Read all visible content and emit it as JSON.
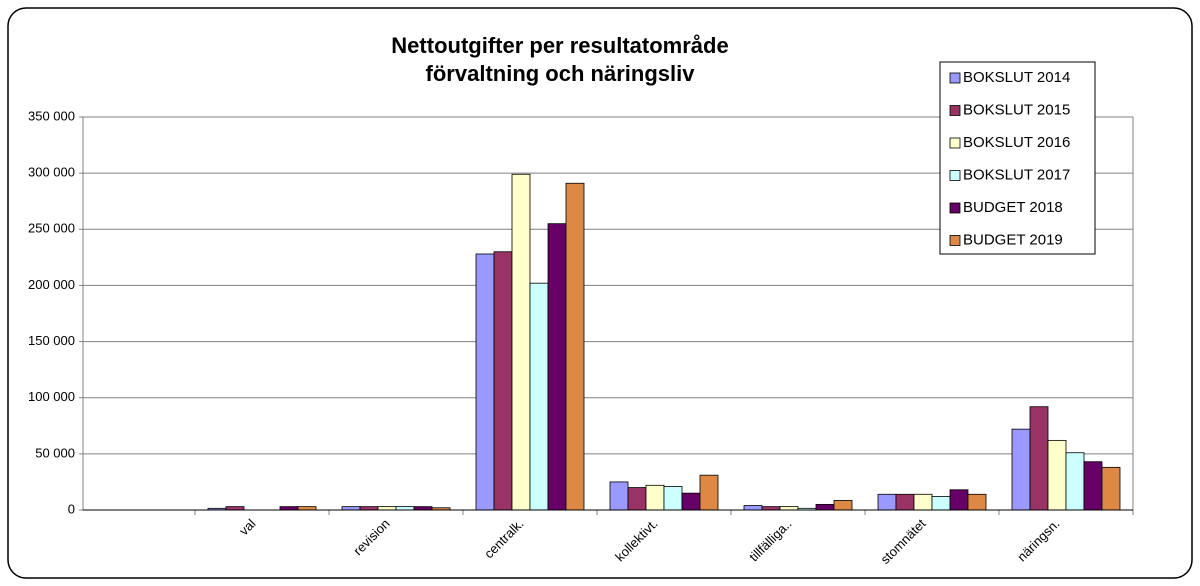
{
  "chart_data": {
    "type": "bar",
    "title": [
      "Nettoutgifter per resultatområde",
      "förvaltning och näringsliv"
    ],
    "categories": [
      "val",
      "revision",
      "centralk.",
      "kollektivt.",
      "tillfälliga..",
      "stomnätet",
      "näringsn."
    ],
    "series": [
      {
        "name": "BOKSLUT 2014",
        "color": "#9999ff",
        "values": [
          1500,
          3000,
          228000,
          25000,
          4000,
          14000,
          72000
        ]
      },
      {
        "name": "BOKSLUT 2015",
        "color": "#993366",
        "values": [
          3000,
          3000,
          230000,
          20000,
          3000,
          14000,
          92000
        ]
      },
      {
        "name": "BOKSLUT 2016",
        "color": "#ffffcc",
        "values": [
          0,
          3000,
          299000,
          22000,
          3000,
          14000,
          62000
        ]
      },
      {
        "name": "BOKSLUT 2017",
        "color": "#ccffff",
        "values": [
          0,
          3000,
          202000,
          21000,
          1500,
          12000,
          51000
        ]
      },
      {
        "name": "BUDGET 2018",
        "color": "#660066",
        "values": [
          3000,
          3000,
          255000,
          15000,
          5000,
          18000,
          43000
        ]
      },
      {
        "name": "BUDGET 2019",
        "color": "#dd8844",
        "values": [
          3000,
          2000,
          291000,
          31000,
          8500,
          14000,
          38000
        ]
      }
    ],
    "ylim": [
      0,
      350000
    ],
    "yticks": [
      0,
      {
        "value": 50000,
        "label": "50 000"
      },
      {
        "value": 100000,
        "label": "100 000"
      },
      {
        "value": 150000,
        "label": "150 000"
      },
      {
        "value": 200000,
        "label": "200 000"
      },
      {
        "value": 250000,
        "label": "250 000"
      },
      {
        "value": 300000,
        "label": "300 000"
      },
      {
        "value": 350000,
        "label": "350 000"
      }
    ],
    "grid": true
  }
}
